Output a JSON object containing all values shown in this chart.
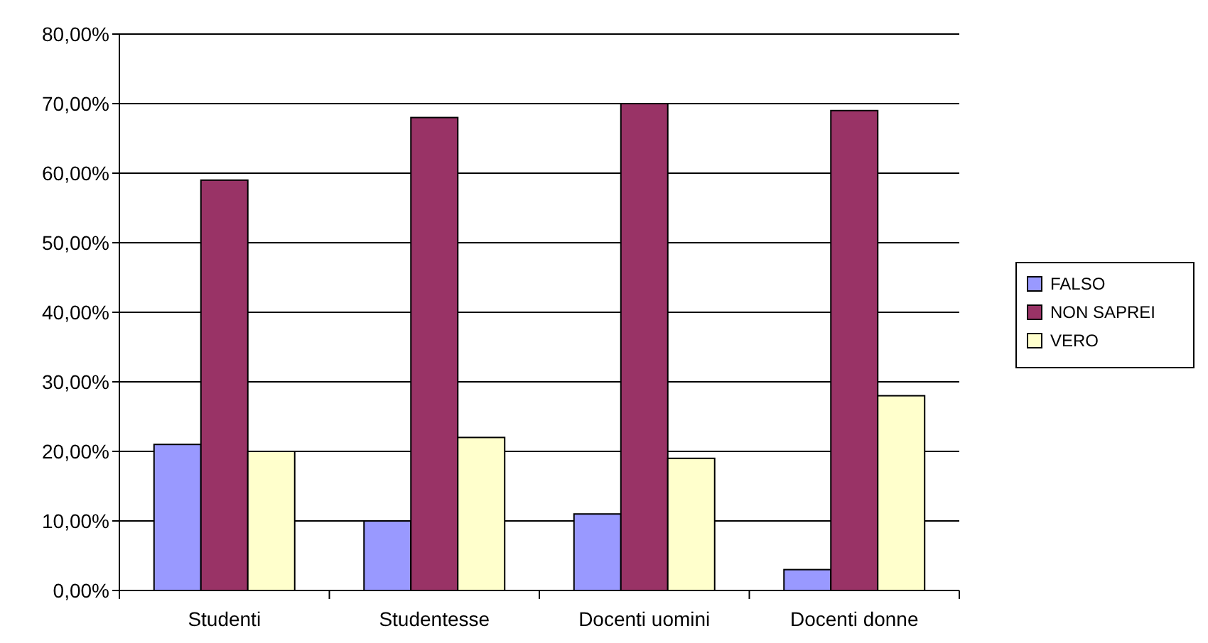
{
  "chart_data": {
    "type": "bar",
    "categories": [
      "Studenti",
      "Studentesse",
      "Docenti uomini",
      "Docenti donne"
    ],
    "series": [
      {
        "name": "FALSO",
        "color": "#9999ff",
        "values": [
          21,
          10,
          11,
          3
        ]
      },
      {
        "name": "NON SAPREI",
        "color": "#993366",
        "values": [
          59,
          68,
          70,
          69
        ]
      },
      {
        "name": "VERO",
        "color": "#ffffcc",
        "values": [
          20,
          22,
          19,
          28
        ]
      }
    ],
    "ylim": [
      0,
      80
    ],
    "yticks": [
      {
        "value": 0,
        "label": "0,00%"
      },
      {
        "value": 10,
        "label": "10,00%"
      },
      {
        "value": 20,
        "label": "20,00%"
      },
      {
        "value": 30,
        "label": "30,00%"
      },
      {
        "value": 40,
        "label": "40,00%"
      },
      {
        "value": 50,
        "label": "50,00%"
      },
      {
        "value": 60,
        "label": "60,00%"
      },
      {
        "value": 70,
        "label": "70,00%"
      },
      {
        "value": 80,
        "label": "80,00%"
      }
    ],
    "grid": "y",
    "legend": "right"
  }
}
